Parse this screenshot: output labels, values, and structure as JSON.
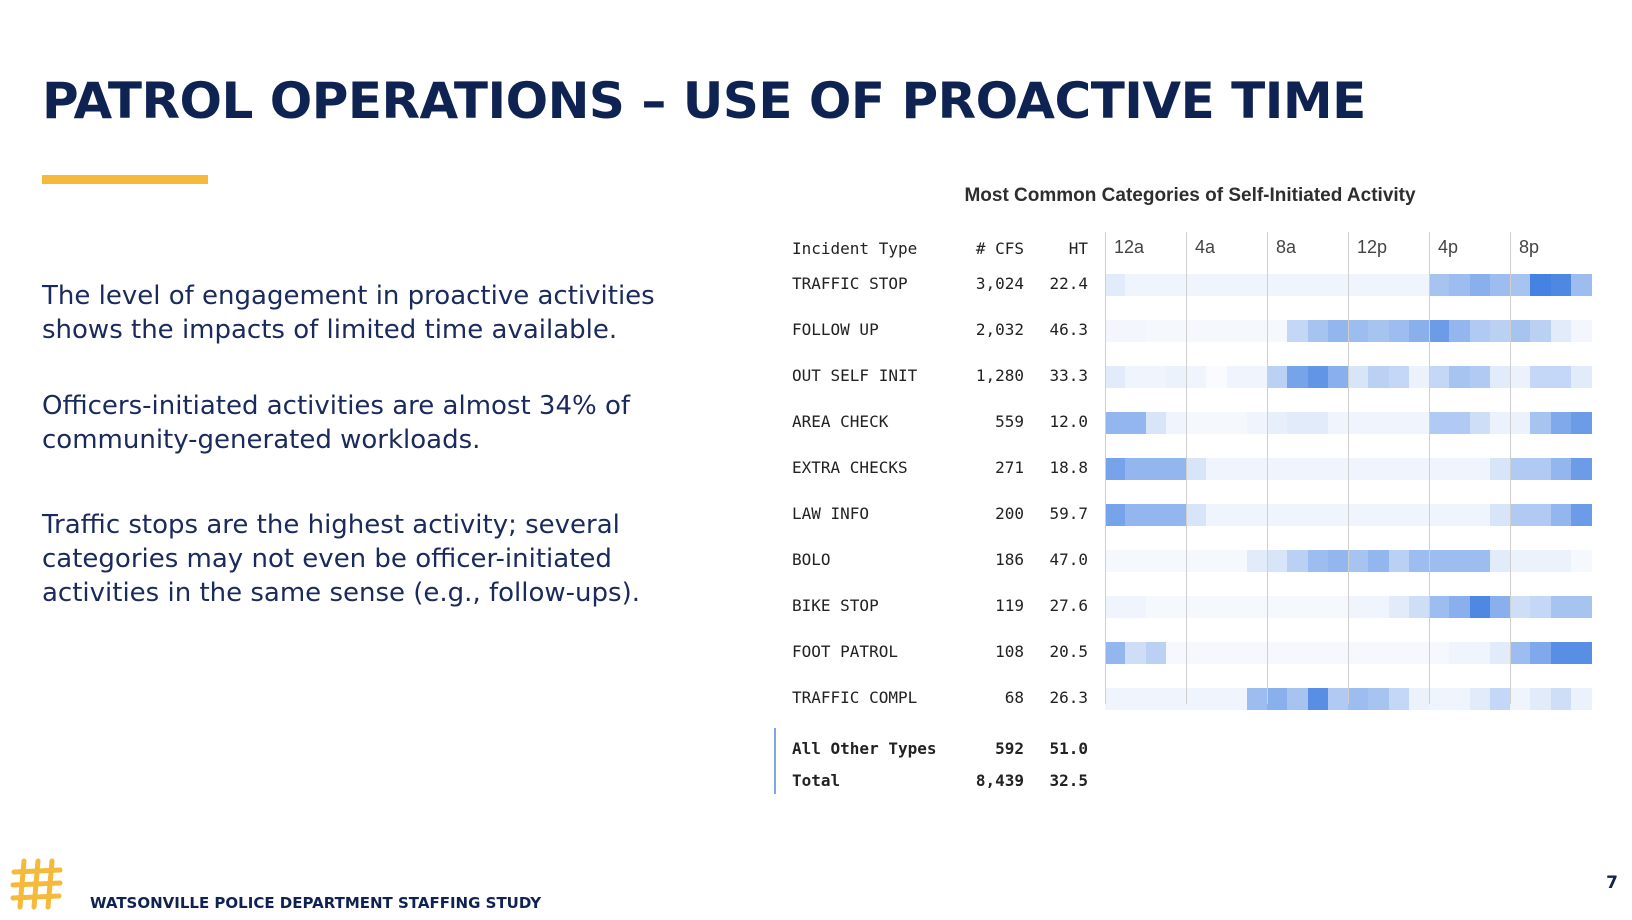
{
  "slide": {
    "title": "PATROL OPERATIONS – USE OF PROACTIVE TIME",
    "paragraphs": [
      "The level of engagement in proactive activities shows the impacts of limited time available.",
      "Officers-initiated activities are almost 34% of community-generated workloads.",
      "Traffic stops are the highest activity; several categories may not even be officer-initiated activities in the same sense (e.g., follow-ups)."
    ],
    "footer": "WATSONVILLE POLICE DEPARTMENT STAFFING STUDY",
    "page_number": "7",
    "colors": {
      "navy": "#0f2352",
      "accent": "#f5b93b",
      "heat": "#3b7be0"
    }
  },
  "chart_data": {
    "type": "heatmap",
    "title": "Most Common Categories of Self-Initiated Activity",
    "columns": {
      "type": "Incident Type",
      "cfs": "# CFS",
      "ht": "HT"
    },
    "hour_labels": [
      "12a",
      "4a",
      "8a",
      "12p",
      "4p",
      "8p"
    ],
    "rows": [
      {
        "type": "TRAFFIC STOP",
        "cfs": "3,024",
        "ht": "22.4",
        "intensity": [
          0.15,
          0.08,
          0.08,
          0.08,
          0.08,
          0.08,
          0.08,
          0.08,
          0.08,
          0.08,
          0.08,
          0.08,
          0.08,
          0.08,
          0.08,
          0.08,
          0.45,
          0.5,
          0.6,
          0.5,
          0.45,
          0.95,
          0.9,
          0.5
        ]
      },
      {
        "type": "FOLLOW UP",
        "cfs": "2,032",
        "ht": "46.3",
        "intensity": [
          0.06,
          0.06,
          0.05,
          0.05,
          0.05,
          0.05,
          0.05,
          0.05,
          0.05,
          0.3,
          0.45,
          0.55,
          0.5,
          0.45,
          0.5,
          0.6,
          0.75,
          0.55,
          0.4,
          0.35,
          0.45,
          0.35,
          0.15,
          0.06
        ]
      },
      {
        "type": "OUT SELF INIT",
        "cfs": "1,280",
        "ht": "33.3",
        "intensity": [
          0.15,
          0.08,
          0.08,
          0.1,
          0.08,
          0.03,
          0.08,
          0.08,
          0.35,
          0.7,
          0.8,
          0.6,
          0.2,
          0.35,
          0.3,
          0.1,
          0.3,
          0.45,
          0.4,
          0.15,
          0.1,
          0.3,
          0.3,
          0.15
        ]
      },
      {
        "type": "AREA CHECK",
        "cfs": "559",
        "ht": "12.0",
        "intensity": [
          0.55,
          0.55,
          0.2,
          0.08,
          0.05,
          0.05,
          0.05,
          0.08,
          0.12,
          0.15,
          0.15,
          0.08,
          0.08,
          0.08,
          0.08,
          0.08,
          0.4,
          0.4,
          0.25,
          0.1,
          0.1,
          0.45,
          0.65,
          0.75
        ]
      },
      {
        "type": "EXTRA CHECKS",
        "cfs": "271",
        "ht": "18.8",
        "intensity": [
          0.7,
          0.55,
          0.55,
          0.55,
          0.2,
          0.08,
          0.08,
          0.08,
          0.08,
          0.08,
          0.08,
          0.08,
          0.08,
          0.08,
          0.08,
          0.08,
          0.08,
          0.08,
          0.08,
          0.2,
          0.4,
          0.4,
          0.55,
          0.75
        ]
      },
      {
        "type": "LAW INFO",
        "cfs": "200",
        "ht": "59.7",
        "intensity": [
          0.7,
          0.55,
          0.55,
          0.55,
          0.2,
          0.08,
          0.08,
          0.08,
          0.08,
          0.08,
          0.08,
          0.08,
          0.08,
          0.08,
          0.08,
          0.08,
          0.08,
          0.08,
          0.08,
          0.2,
          0.4,
          0.4,
          0.55,
          0.75
        ]
      },
      {
        "type": "BOLO",
        "cfs": "186",
        "ht": "47.0",
        "intensity": [
          0.05,
          0.05,
          0.05,
          0.05,
          0.05,
          0.05,
          0.05,
          0.15,
          0.2,
          0.35,
          0.5,
          0.55,
          0.45,
          0.55,
          0.35,
          0.5,
          0.5,
          0.5,
          0.5,
          0.15,
          0.1,
          0.1,
          0.1,
          0.05
        ]
      },
      {
        "type": "BIKE STOP",
        "cfs": "119",
        "ht": "27.6",
        "intensity": [
          0.08,
          0.08,
          0.05,
          0.05,
          0.05,
          0.05,
          0.05,
          0.05,
          0.05,
          0.05,
          0.05,
          0.05,
          0.08,
          0.08,
          0.15,
          0.25,
          0.5,
          0.6,
          0.9,
          0.6,
          0.25,
          0.3,
          0.45,
          0.45
        ]
      },
      {
        "type": "FOOT PATROL",
        "cfs": "108",
        "ht": "20.5",
        "intensity": [
          0.55,
          0.25,
          0.35,
          0.05,
          0.05,
          0.05,
          0.05,
          0.05,
          0.05,
          0.05,
          0.05,
          0.05,
          0.05,
          0.05,
          0.05,
          0.05,
          0.05,
          0.08,
          0.08,
          0.15,
          0.5,
          0.65,
          0.85,
          0.85
        ]
      },
      {
        "type": "TRAFFIC COMPL",
        "cfs": "68",
        "ht": "26.3",
        "intensity": [
          0.08,
          0.08,
          0.08,
          0.08,
          0.08,
          0.08,
          0.08,
          0.5,
          0.6,
          0.45,
          0.85,
          0.4,
          0.5,
          0.45,
          0.3,
          0.1,
          0.08,
          0.08,
          0.15,
          0.3,
          0.08,
          0.15,
          0.25,
          0.1
        ]
      }
    ],
    "summary": [
      {
        "type": "All Other Types",
        "cfs": "592",
        "ht": "51.0"
      },
      {
        "type": "Total",
        "cfs": "8,439",
        "ht": "32.5"
      }
    ]
  }
}
